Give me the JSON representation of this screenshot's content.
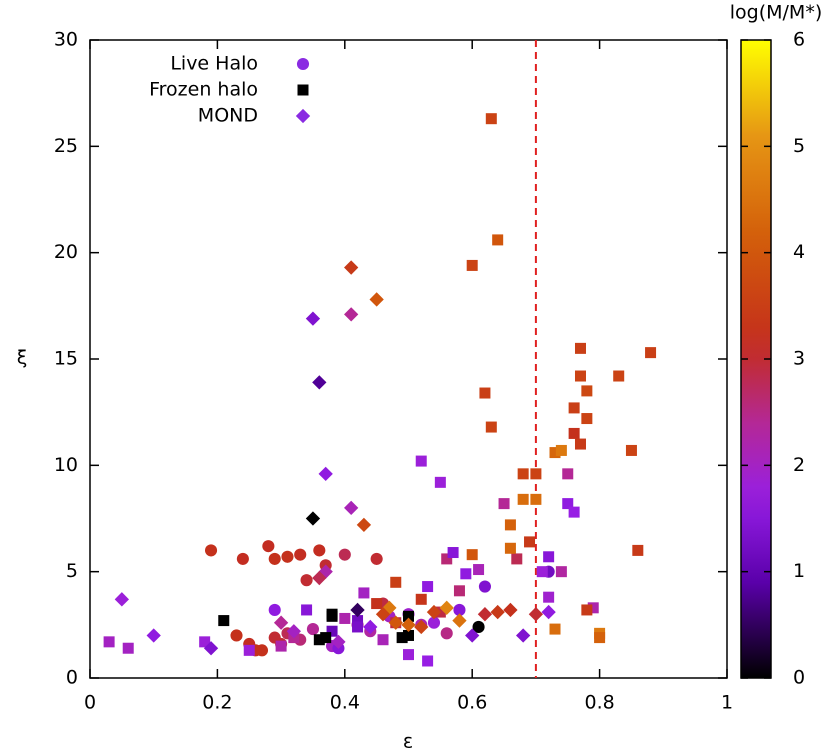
{
  "chart_data": {
    "type": "scatter",
    "x_label": "ε",
    "y_label": "ξ",
    "xlim": [
      0,
      1
    ],
    "xticks": [
      0,
      0.2,
      0.4,
      0.6,
      0.8,
      1
    ],
    "ylim": [
      0,
      30
    ],
    "yticks": [
      0,
      5,
      10,
      15,
      20,
      25,
      30
    ],
    "colorbar": {
      "label": "log(M/M*)",
      "lim": [
        0,
        6
      ],
      "ticks": [
        0,
        1,
        2,
        3,
        4,
        5,
        6
      ]
    },
    "vline": {
      "x": 0.7,
      "color": "#e02020"
    },
    "legend": "top-left",
    "series": [
      {
        "name": "Live Halo",
        "marker": "circle",
        "color": "#8a2be2",
        "x": [
          0.19,
          0.24,
          0.28,
          0.29,
          0.31,
          0.33,
          0.34,
          0.36,
          0.37,
          0.4,
          0.45,
          0.23,
          0.25,
          0.27,
          0.29,
          0.31,
          0.33,
          0.35,
          0.38,
          0.42,
          0.44,
          0.29,
          0.47,
          0.5,
          0.54,
          0.58,
          0.61,
          0.72,
          0.62,
          0.46,
          0.39,
          0.52,
          0.56,
          0.3,
          0.26
        ],
        "y": [
          6.0,
          5.6,
          6.2,
          5.6,
          5.7,
          5.8,
          4.6,
          6.0,
          5.3,
          5.8,
          5.6,
          2.0,
          1.6,
          1.3,
          1.9,
          2.1,
          1.8,
          2.3,
          1.5,
          2.5,
          2.2,
          3.2,
          2.9,
          3.0,
          2.6,
          3.2,
          2.4,
          5.0,
          4.3,
          3.5,
          1.4,
          2.5,
          2.1,
          1.6,
          1.3
        ],
        "c": [
          3.2,
          3.1,
          3.1,
          3.2,
          3.2,
          3.1,
          3.0,
          3.1,
          3.0,
          2.8,
          3.0,
          3.2,
          3.1,
          3.2,
          3.0,
          2.8,
          2.6,
          2.4,
          2.0,
          2.5,
          2.3,
          1.6,
          2.0,
          1.9,
          1.8,
          1.5,
          0.0,
          1.2,
          1.4,
          2.9,
          1.5,
          2.2,
          2.5,
          3.0,
          3.2
        ]
      },
      {
        "name": "Frozen halo",
        "marker": "square",
        "color": "#000000",
        "x": [
          0.03,
          0.06,
          0.18,
          0.21,
          0.25,
          0.3,
          0.32,
          0.34,
          0.38,
          0.42,
          0.45,
          0.48,
          0.5,
          0.52,
          0.53,
          0.55,
          0.58,
          0.6,
          0.63,
          0.64,
          0.62,
          0.63,
          0.66,
          0.68,
          0.69,
          0.7,
          0.71,
          0.72,
          0.73,
          0.74,
          0.75,
          0.76,
          0.77,
          0.77,
          0.78,
          0.76,
          0.75,
          0.77,
          0.78,
          0.79,
          0.8,
          0.83,
          0.85,
          0.86,
          0.88,
          0.52,
          0.55,
          0.56,
          0.6,
          0.65,
          0.67,
          0.7,
          0.72,
          0.74,
          0.76,
          0.5,
          0.46,
          0.48,
          0.43,
          0.4,
          0.36,
          0.38,
          0.42,
          0.5,
          0.53,
          0.57,
          0.59,
          0.61,
          0.66,
          0.68,
          0.73,
          0.78,
          0.8,
          0.38,
          0.37,
          0.49
        ],
        "y": [
          1.7,
          1.4,
          1.7,
          2.7,
          1.3,
          1.5,
          1.9,
          3.2,
          3.0,
          2.7,
          3.5,
          4.5,
          2.0,
          10.2,
          0.8,
          9.2,
          4.1,
          19.4,
          26.3,
          20.6,
          13.4,
          11.8,
          7.2,
          9.6,
          6.4,
          8.4,
          5.0,
          3.8,
          10.6,
          10.7,
          9.6,
          12.7,
          14.2,
          15.5,
          13.5,
          11.5,
          8.2,
          11.0,
          12.2,
          3.3,
          2.1,
          14.2,
          10.7,
          6.0,
          15.3,
          3.7,
          3.1,
          5.6,
          5.8,
          8.2,
          5.6,
          9.6,
          5.7,
          5.0,
          7.8,
          1.1,
          1.8,
          2.6,
          4.0,
          2.8,
          1.8,
          2.2,
          2.4,
          2.9,
          4.3,
          5.9,
          4.9,
          5.1,
          6.1,
          8.4,
          2.3,
          3.2,
          1.9,
          2.9,
          1.9,
          1.9
        ],
        "c": [
          2.0,
          2.0,
          1.8,
          0.0,
          1.8,
          2.2,
          2.4,
          1.5,
          0.0,
          1.2,
          3.2,
          3.5,
          0.0,
          1.8,
          1.7,
          1.8,
          2.6,
          3.6,
          3.6,
          4.0,
          3.5,
          3.6,
          4.2,
          3.6,
          3.4,
          4.4,
          1.8,
          1.9,
          4.3,
          4.6,
          2.4,
          3.5,
          3.6,
          3.5,
          3.7,
          3.2,
          1.6,
          3.4,
          3.6,
          2.2,
          4.6,
          3.6,
          3.6,
          3.4,
          3.5,
          3.3,
          2.9,
          2.6,
          4.0,
          2.4,
          2.8,
          3.6,
          1.5,
          2.3,
          1.7,
          1.8,
          2.1,
          2.9,
          2.0,
          2.2,
          0.0,
          1.1,
          1.3,
          0.0,
          1.6,
          1.5,
          1.6,
          2.1,
          4.3,
          4.4,
          4.4,
          3.4,
          4.2,
          0.0,
          0.0,
          0.0
        ]
      },
      {
        "name": "MOND",
        "marker": "diamond",
        "color": "#8a2be2",
        "x": [
          0.05,
          0.1,
          0.19,
          0.35,
          0.36,
          0.37,
          0.35,
          0.41,
          0.41,
          0.45,
          0.41,
          0.43,
          0.37,
          0.36,
          0.39,
          0.42,
          0.44,
          0.47,
          0.5,
          0.54,
          0.56,
          0.6,
          0.62,
          0.64,
          0.66,
          0.68,
          0.7,
          0.72,
          0.46,
          0.48,
          0.52,
          0.58,
          0.32,
          0.3
        ],
        "y": [
          3.7,
          2.0,
          1.4,
          16.9,
          13.9,
          9.6,
          7.5,
          19.3,
          17.1,
          17.8,
          8.0,
          7.2,
          5.0,
          4.7,
          1.7,
          3.2,
          2.4,
          3.3,
          2.5,
          3.1,
          3.3,
          2.0,
          3.0,
          3.1,
          3.2,
          2.0,
          3.0,
          3.1,
          3.0,
          2.6,
          2.4,
          2.7,
          2.2,
          2.6
        ],
        "c": [
          1.8,
          1.6,
          1.4,
          1.4,
          0.8,
          1.6,
          0.0,
          3.4,
          2.4,
          4.0,
          2.1,
          3.7,
          2.2,
          2.8,
          2.0,
          0.5,
          1.6,
          4.6,
          4.2,
          3.6,
          4.8,
          1.4,
          3.0,
          3.4,
          3.2,
          1.4,
          3.0,
          1.6,
          3.6,
          4.0,
          3.6,
          4.5,
          2.0,
          2.4
        ]
      }
    ]
  }
}
